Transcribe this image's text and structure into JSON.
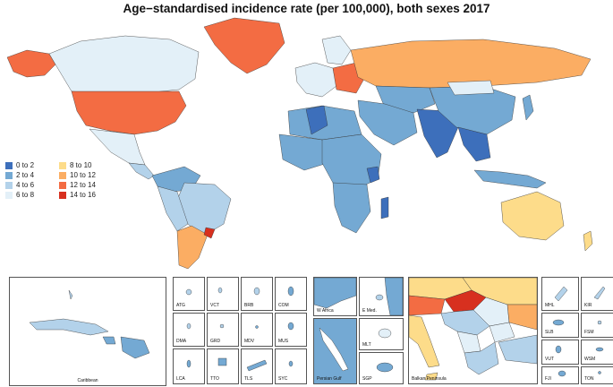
{
  "title": "Age−standardised incidence rate (per 100,000), both sexes 2017",
  "legend": [
    {
      "label": "0  to  2",
      "color": "#3d6fbb"
    },
    {
      "label": "2  to  4",
      "color": "#74a9d3"
    },
    {
      "label": "4  to  6",
      "color": "#b3d2ea"
    },
    {
      "label": "6  to  8",
      "color": "#e3f0f8"
    },
    {
      "label": "8  to  10",
      "color": "#fddc8a"
    },
    {
      "label": "10  to  12",
      "color": "#fbad63"
    },
    {
      "label": "12  to  14",
      "color": "#f36c43"
    },
    {
      "label": "14  to  16",
      "color": "#d7301f"
    }
  ],
  "insets": {
    "caribbean": "Caribbean",
    "small": [
      "ATG",
      "VCT",
      "BRB",
      "COM",
      "DMA",
      "GRD",
      "MDV",
      "MUS",
      "LCA",
      "TTO",
      "TLS",
      "SYC"
    ],
    "wafrica": "W Africa",
    "emed": "E Med.",
    "persian": "Persian Gulf",
    "mlt": "MLT",
    "sgp": "SGP",
    "balkan": "Balkan Peninsula",
    "pacific": [
      "MHL",
      "KIR",
      "SLB",
      "FSM",
      "VUT",
      "WSM",
      "FJI",
      "TON"
    ]
  }
}
